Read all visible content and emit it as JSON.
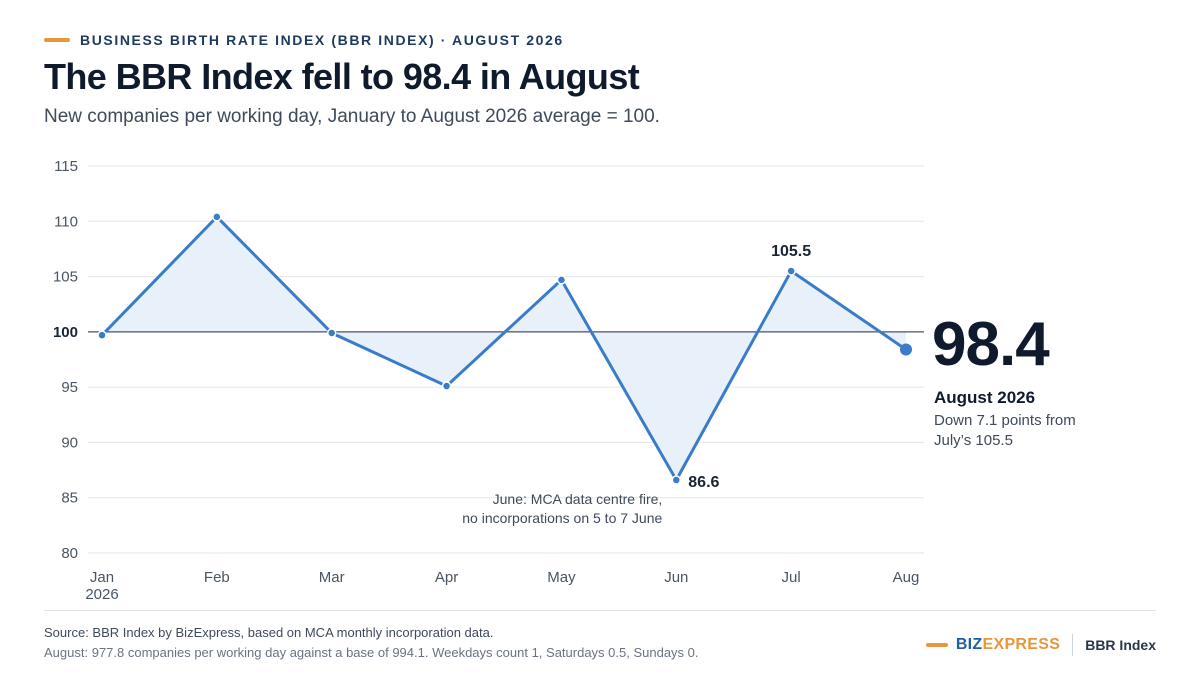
{
  "header": {
    "kicker": "BUSINESS BIRTH RATE INDEX (BBR INDEX) · AUGUST 2026",
    "title": "The BBR Index fell to 98.4 in August",
    "subtitle": "New companies per working day, January to August 2026 average = 100."
  },
  "chart_data": {
    "type": "area",
    "categories": [
      "Jan",
      "Feb",
      "Mar",
      "Apr",
      "May",
      "Jun",
      "Jul",
      "Aug"
    ],
    "category_sublabel": "2026",
    "values": [
      99.7,
      110.4,
      99.9,
      95.1,
      104.7,
      86.6,
      105.5,
      98.4
    ],
    "baseline": 100,
    "ylim": [
      80,
      115
    ],
    "yticks": [
      80,
      85,
      90,
      95,
      100,
      105,
      110,
      115
    ],
    "grid": true,
    "data_labels": [
      {
        "index": 5,
        "text": "86.6"
      },
      {
        "index": 6,
        "text": "105.5"
      }
    ],
    "annotation": {
      "index": 5,
      "lines": [
        "June: MCA data centre fire,",
        "no incorporations on 5 to 7 June"
      ]
    },
    "colors": {
      "line": "#3a7cc8",
      "fill": "#e8f0fa",
      "grid": "#e3e6ea",
      "baseline": "#4a5563"
    }
  },
  "callout": {
    "value": "98.4",
    "label": "August 2026",
    "note": "Down 7.1 points from July’s 105.5"
  },
  "footer": {
    "source": "Source: BBR Index by BizExpress, based on MCA monthly incorporation data.",
    "note": "August: 977.8 companies per working day against a base of 994.1. Weekdays count 1, Saturdays 0.5, Sundays 0."
  },
  "brand": {
    "name_part1": "BIZ",
    "name_part2": "EXPRESS",
    "product": "BBR Index",
    "accent": "#e8963a"
  }
}
